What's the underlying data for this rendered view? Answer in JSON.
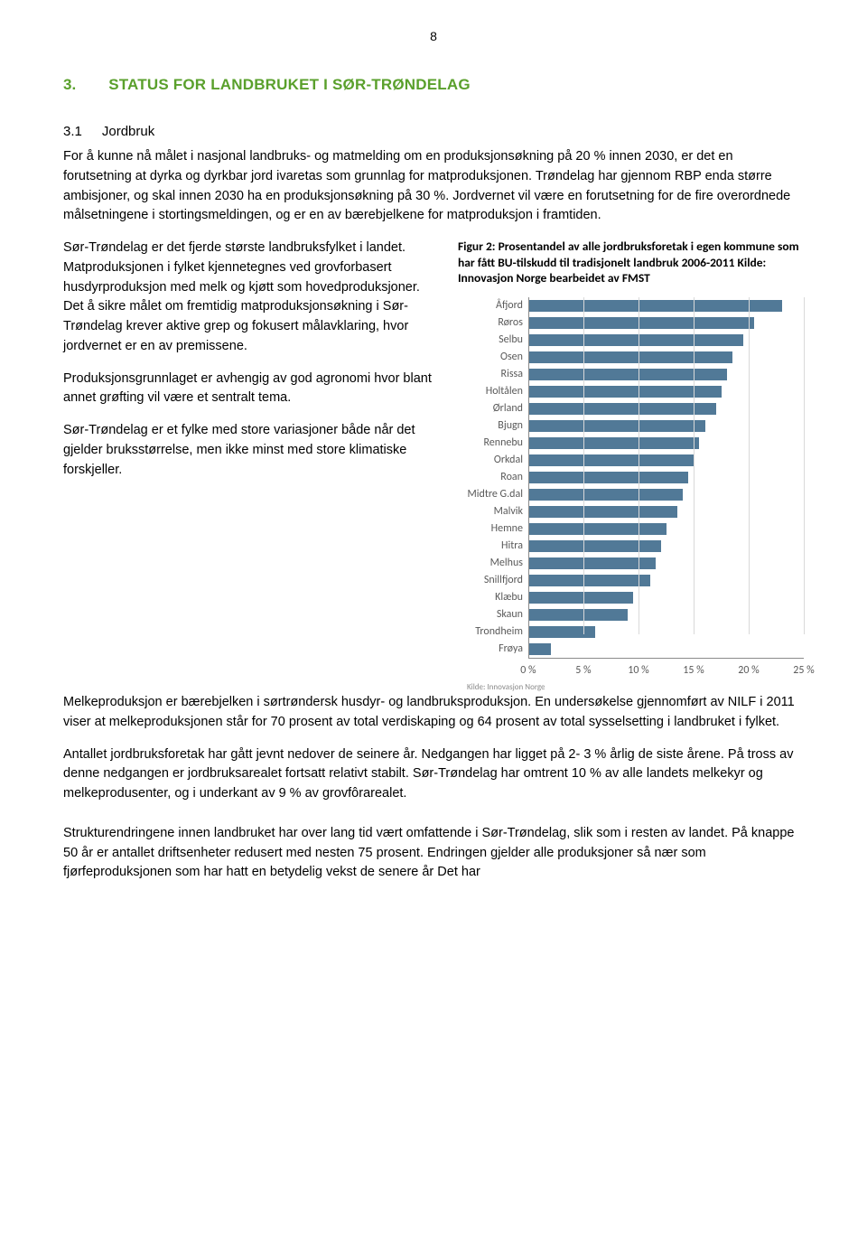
{
  "page_number": "8",
  "heading1": {
    "num": "3.",
    "text": "STATUS FOR LANDBRUKET I SØR-TRØNDELAG"
  },
  "heading2": {
    "num": "3.1",
    "text": "Jordbruk"
  },
  "para1": "For å kunne nå målet i nasjonal landbruks- og matmelding om en produksjonsøkning på 20 % innen 2030, er det en forutsetning at dyrka og dyrkbar jord ivaretas som grunnlag for matproduksjonen. Trøndelag har gjennom RBP enda større ambisjoner, og skal innen 2030 ha en produksjonsøkning på 30 %. Jordvernet vil være en forutsetning for de fire overordnede målsetningene i stortingsmeldingen, og er en av bærebjelkene for matproduksjon i framtiden.",
  "left_paras": [
    "Sør-Trøndelag er det fjerde største landbruksfylket i landet. Matproduksjonen i fylket kjennetegnes ved grovforbasert husdyrproduksjon med melk og kjøtt som hovedproduksjoner. Det å sikre målet om fremtidig matproduksjonsøkning i Sør-Trøndelag krever aktive grep og fokusert målavklaring, hvor jordvernet er en av premissene.",
    "Produksjonsgrunnlaget er avhengig av god agronomi hvor blant annet grøfting vil være et sentralt tema.",
    "Sør-Trøndelag er et fylke med store variasjoner både når det gjelder bruksstørrelse, men ikke minst med store klimatiske forskjeller."
  ],
  "figure_caption": "Figur 2: Prosentandel av alle jordbruksforetak i egen kommune som har fått BU-tilskudd til tradisjonelt landbruk 2006-2011 Kilde: Innovasjon Norge bearbeidet av FMST",
  "chart": {
    "type": "bar-horizontal",
    "bar_color": "#517997",
    "grid_color": "#d9d9d9",
    "axis_color": "#8a8a8a",
    "text_color": "#595959",
    "background": "#ffffff",
    "xmax": 25,
    "xticks": [
      0,
      5,
      10,
      15,
      20,
      25
    ],
    "xtick_labels": [
      "0 %",
      "5 %",
      "10 %",
      "15 %",
      "20 %",
      "25 %"
    ],
    "categories": [
      "Åfjord",
      "Røros",
      "Selbu",
      "Osen",
      "Rissa",
      "Holtålen",
      "Ørland",
      "Bjugn",
      "Rennebu",
      "Orkdal",
      "Roan",
      "Midtre G.dal",
      "Malvik",
      "Hemne",
      "Hitra",
      "Melhus",
      "Snillfjord",
      "Klæbu",
      "Skaun",
      "Trondheim",
      "Frøya"
    ],
    "values": [
      23.0,
      20.5,
      19.5,
      18.5,
      18.0,
      17.5,
      17.0,
      16.0,
      15.5,
      15.0,
      14.5,
      14.0,
      13.5,
      12.5,
      12.0,
      11.5,
      11.0,
      9.5,
      9.0,
      6.0,
      2.0
    ],
    "source": "Kilde: Innovasjon Norge",
    "cat_fontsize": 12,
    "tick_fontsize": 12
  },
  "bottom_paras": [
    "Melkeproduksjon er bærebjelken i sørtrøndersk husdyr- og landbruksproduksjon. En undersøkelse gjennomført av NILF i 2011 viser at melkeproduksjonen står for 70 prosent av total verdiskaping og 64 prosent av total sysselsetting i landbruket i fylket.",
    "Antallet jordbruksforetak har gått jevnt nedover de seinere år. Nedgangen har ligget på 2- 3 % årlig de siste årene. På tross av denne nedgangen er jordbruksarealet fortsatt relativt stabilt. Sør-Trøndelag har omtrent 10 % av alle landets melkekyr og melkeprodusenter, og i underkant av 9 % av grovfôrarealet.",
    "Strukturendringene innen landbruket har over lang tid vært omfattende i Sør-Trøndelag, slik som i resten av landet. På knappe 50 år er antallet driftsenheter redusert med nesten 75 prosent. Endringen gjelder alle produksjoner så nær som fjørfeproduksjonen som har hatt en betydelig vekst de senere år Det har"
  ]
}
